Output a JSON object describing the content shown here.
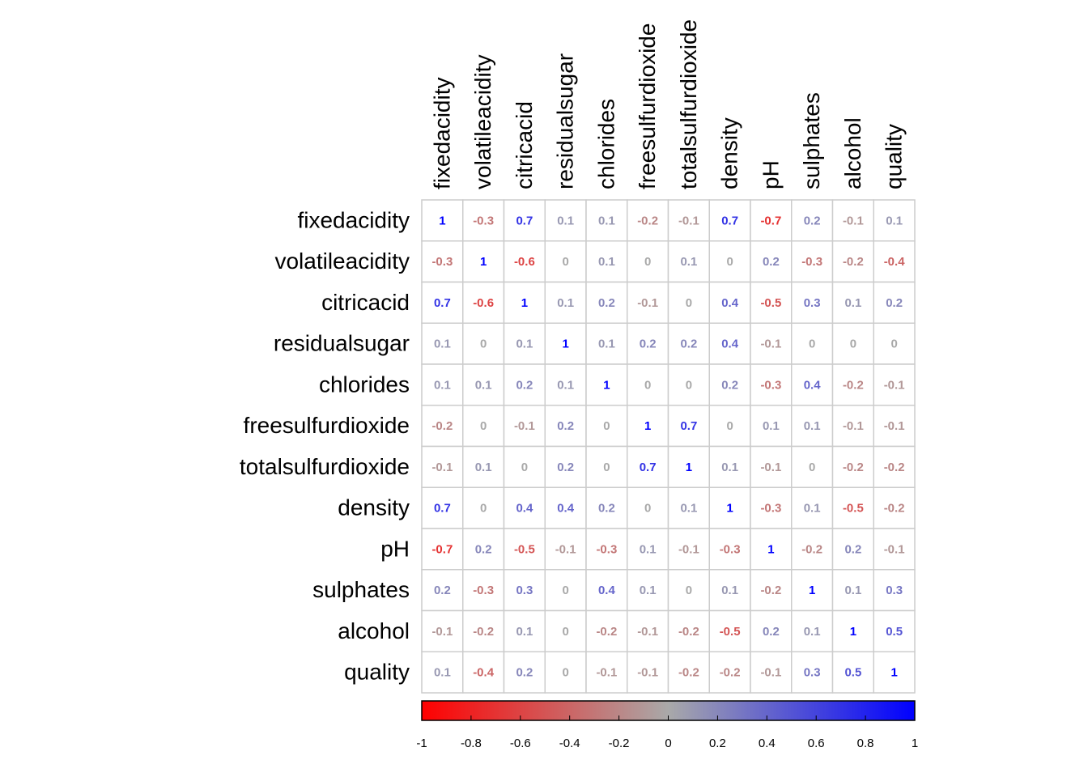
{
  "chart_data": {
    "type": "heatmap",
    "variables": [
      "fixedacidity",
      "volatileacidity",
      "citricacid",
      "residualsugar",
      "chlorides",
      "freesulfurdioxide",
      "totalsulfurdioxide",
      "density",
      "pH",
      "sulphates",
      "alcohol",
      "quality"
    ],
    "matrix": [
      [
        1,
        -0.3,
        0.7,
        0.1,
        0.1,
        -0.2,
        -0.1,
        0.7,
        -0.7,
        0.2,
        -0.1,
        0.1
      ],
      [
        -0.3,
        1,
        -0.6,
        0,
        0.1,
        0,
        0.1,
        0,
        0.2,
        -0.3,
        -0.2,
        -0.4
      ],
      [
        0.7,
        -0.6,
        1,
        0.1,
        0.2,
        -0.1,
        0,
        0.4,
        -0.5,
        0.3,
        0.1,
        0.2
      ],
      [
        0.1,
        0,
        0.1,
        1,
        0.1,
        0.2,
        0.2,
        0.4,
        -0.1,
        0,
        0,
        0
      ],
      [
        0.1,
        0.1,
        0.2,
        0.1,
        1,
        0,
        0,
        0.2,
        -0.3,
        0.4,
        -0.2,
        -0.1
      ],
      [
        -0.2,
        0,
        -0.1,
        0.2,
        0,
        1,
        0.7,
        0,
        0.1,
        0.1,
        -0.1,
        -0.1
      ],
      [
        -0.1,
        0.1,
        0,
        0.2,
        0,
        0.7,
        1,
        0.1,
        -0.1,
        0,
        -0.2,
        -0.2
      ],
      [
        0.7,
        0,
        0.4,
        0.4,
        0.2,
        0,
        0.1,
        1,
        -0.3,
        0.1,
        -0.5,
        -0.2
      ],
      [
        -0.7,
        0.2,
        -0.5,
        -0.1,
        -0.3,
        0.1,
        -0.1,
        -0.3,
        1,
        -0.2,
        0.2,
        -0.1
      ],
      [
        0.2,
        -0.3,
        0.3,
        0,
        0.4,
        0.1,
        0,
        0.1,
        -0.2,
        1,
        0.1,
        0.3
      ],
      [
        -0.1,
        -0.2,
        0.1,
        0,
        -0.2,
        -0.1,
        -0.2,
        -0.5,
        0.2,
        0.1,
        1,
        0.5
      ],
      [
        0.1,
        -0.4,
        0.2,
        0,
        -0.1,
        -0.1,
        -0.2,
        -0.2,
        -0.1,
        0.3,
        0.5,
        1
      ]
    ],
    "colorbar": {
      "ticks": [
        "-1",
        "-0.8",
        "-0.6",
        "-0.4",
        "-0.2",
        "0",
        "0.2",
        "0.4",
        "0.6",
        "0.8",
        "1"
      ],
      "range": [
        -1,
        1
      ],
      "colors": {
        "low": "#FF0000",
        "mid": "#A9A9A9",
        "high": "#0000FF"
      },
      "placement": "bottom"
    },
    "grid": true
  }
}
